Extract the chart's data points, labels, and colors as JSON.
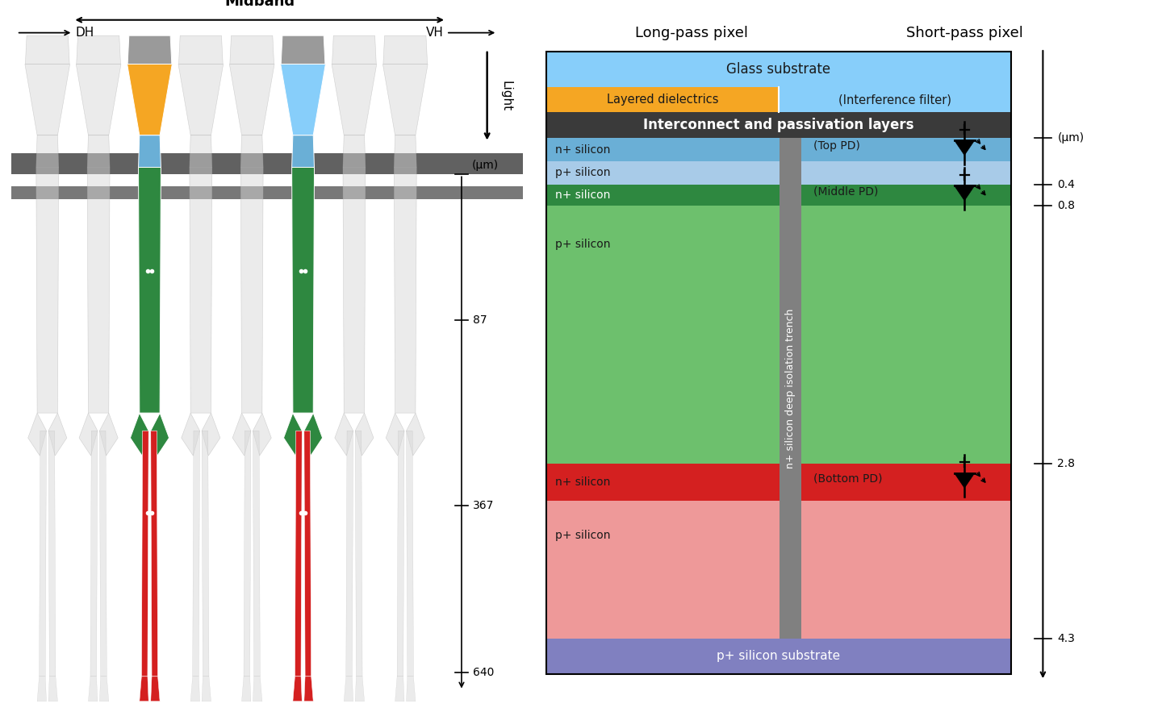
{
  "longpass_label": "Long-pass pixel",
  "shortpass_label": "Short-pass pixel",
  "light_label": "Light",
  "midband_label": "Midband",
  "dh_label": "DH",
  "vh_label": "VH",
  "glass_color": "#87CEFA",
  "orange_color": "#F5A623",
  "interconnect_color": "#3A3A3A",
  "blue_dark_color": "#6AAFD6",
  "blue_light_color": "#A8CBE8",
  "green_dark_color": "#2E8840",
  "green_light_color": "#6DC06D",
  "red_dark_color": "#D42020",
  "red_light_color": "#EE9999",
  "substrate_color": "#8080C0",
  "trench_color": "#808080",
  "cell_gray_cap": "#9A9A9A",
  "cell_outline": "#AAAAAA",
  "cell_faded": "#D8D8D8"
}
